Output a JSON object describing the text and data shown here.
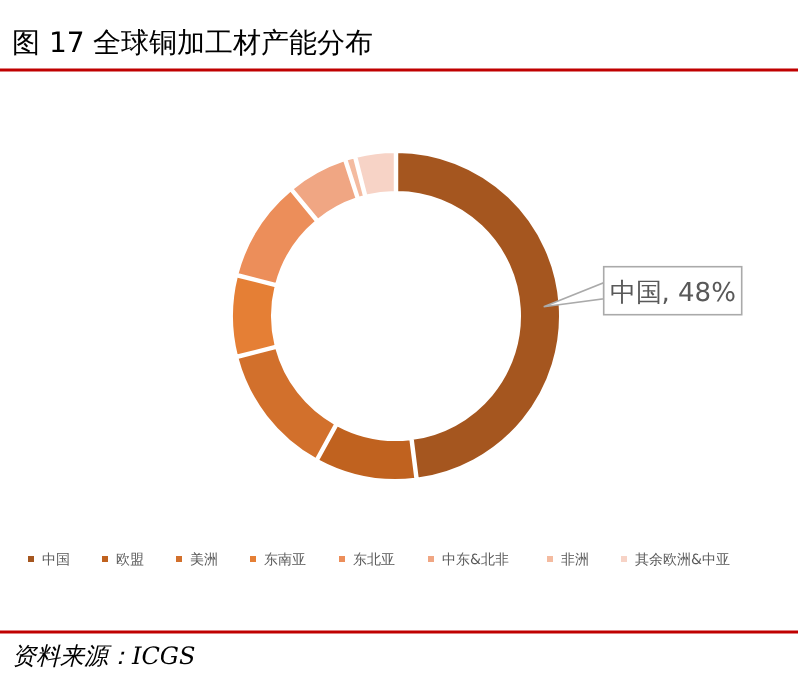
{
  "chart_data": {
    "type": "donut",
    "title": "图 17  全球铜加工材产能分布",
    "categories": [
      "中国",
      "欧盟",
      "美洲",
      "东南亚",
      "东北亚",
      "中东&北非",
      "非洲",
      "其余欧洲&中亚"
    ],
    "values": [
      48,
      10,
      13,
      8,
      10,
      6,
      1,
      4
    ],
    "colors": [
      "#a5561f",
      "#c0621f",
      "#d2702c",
      "#e57f35",
      "#ec8e5a",
      "#f0a683",
      "#f4bba0",
      "#f7d3c6"
    ],
    "value_labels": [
      "中国, 48%",
      null,
      null,
      null,
      null,
      null,
      null,
      null
    ],
    "legend": "bottom",
    "annotations": [
      "资料来源：ICGS"
    ]
  }
}
